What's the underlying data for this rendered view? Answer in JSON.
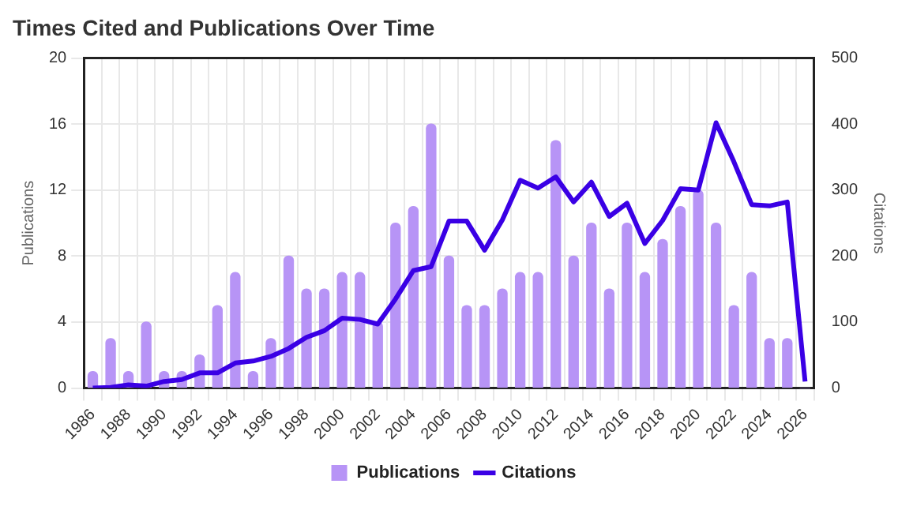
{
  "chart_data": {
    "type": "bar",
    "title": "Times Cited and Publications Over Time",
    "categories": [
      "1986",
      null,
      "1988",
      null,
      "1990",
      null,
      "1992",
      null,
      "1994",
      null,
      "1996",
      null,
      "1998",
      null,
      "2000",
      null,
      "2002",
      null,
      "2004",
      null,
      "2006",
      null,
      "2008",
      null,
      "2010",
      null,
      "2012",
      null,
      "2014",
      null,
      "2016",
      null,
      "2018",
      null,
      "2020",
      null,
      "2022",
      null,
      "2024",
      null,
      "2026"
    ],
    "series": [
      {
        "name": "Publications",
        "color": "#b794f6",
        "values": [
          1,
          3,
          1,
          4,
          1,
          1,
          2,
          5,
          7,
          1,
          3,
          8,
          6,
          6,
          7,
          7,
          4,
          10,
          11,
          16,
          8,
          5,
          5,
          6,
          7,
          7,
          15,
          8,
          10,
          6,
          10,
          7,
          9,
          11,
          12,
          10,
          5,
          7,
          3,
          3,
          0
        ]
      },
      {
        "name": "Citations",
        "type": "line",
        "axis": "y2",
        "color": "#3a00e5",
        "values": [
          0,
          1,
          5,
          3,
          10,
          13,
          23,
          23,
          38,
          41,
          48,
          60,
          77,
          87,
          106,
          104,
          97,
          135,
          178,
          184,
          253,
          253,
          209,
          255,
          315,
          303,
          320,
          282,
          312,
          260,
          280,
          219,
          254,
          302,
          300,
          402,
          343,
          278,
          276,
          282,
          10
        ]
      }
    ],
    "ylabel": "Publications",
    "y2label": "Citations",
    "ylim": [
      0,
      20
    ],
    "yticks": [
      0,
      4,
      8,
      12,
      16,
      20
    ],
    "y2lim": [
      0,
      500
    ],
    "y2ticks": [
      0,
      100,
      200,
      300,
      400,
      500
    ],
    "grid": true,
    "legend": "bottom"
  }
}
